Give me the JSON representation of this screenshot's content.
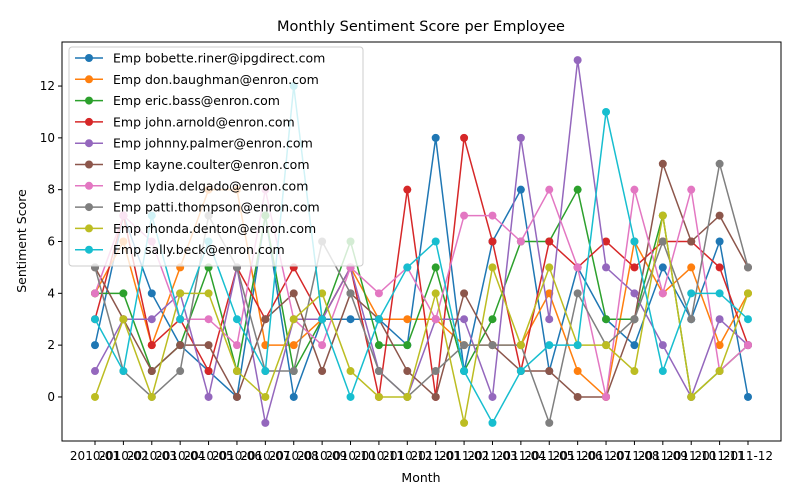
{
  "chart_data": {
    "type": "line",
    "title": "Monthly Sentiment Score per Employee",
    "xlabel": "Month",
    "ylabel": "Sentiment Score",
    "x": [
      "2010-01",
      "2010-02",
      "2010-03",
      "2010-04",
      "2010-05",
      "2010-06",
      "2010-07",
      "2010-08",
      "2010-09",
      "2010-10",
      "2010-11",
      "2010-12",
      "2011-01",
      "2011-02",
      "2011-03",
      "2011-04",
      "2011-05",
      "2011-06",
      "2011-07",
      "2011-08",
      "2011-09",
      "2011-10",
      "2011-11",
      "2011-12"
    ],
    "ylim": [
      -1.7,
      13.7
    ],
    "yticks": [
      0,
      2,
      4,
      6,
      8,
      10,
      12
    ],
    "grid": false,
    "legend_position": "upper-left",
    "series": [
      {
        "name": "Emp bobette.riner@ipgdirect.com",
        "color": "#1f77b4",
        "values": [
          2,
          7,
          4,
          2,
          1,
          0,
          7,
          0,
          3,
          3,
          3,
          2,
          10,
          1,
          6,
          8,
          1,
          5,
          3,
          2,
          5,
          3,
          6,
          0
        ]
      },
      {
        "name": "Emp don.baughman@enron.com",
        "color": "#ff7f0e",
        "values": [
          4,
          6,
          2,
          5,
          8,
          8,
          2,
          2,
          3,
          5,
          3,
          3,
          3,
          2,
          2,
          2,
          4,
          1,
          0,
          6,
          4,
          5,
          2,
          4
        ]
      },
      {
        "name": "Emp eric.bass@enron.com",
        "color": "#2ca02c",
        "values": [
          4,
          4,
          1,
          2,
          5,
          1,
          7,
          1,
          3,
          6,
          2,
          2,
          5,
          1,
          3,
          6,
          6,
          8,
          3,
          3,
          7,
          0,
          1,
          2
        ]
      },
      {
        "name": "Emp john.arnold@enron.com",
        "color": "#d62728",
        "values": [
          3,
          7,
          2,
          3,
          1,
          5,
          3,
          5,
          3,
          5,
          0,
          8,
          0,
          10,
          6,
          1,
          6,
          5,
          6,
          5,
          6,
          6,
          5,
          2
        ]
      },
      {
        "name": "Emp johnny.palmer@enron.com",
        "color": "#9467bd",
        "values": [
          1,
          3,
          3,
          4,
          0,
          5,
          -1,
          3,
          3,
          5,
          1,
          0,
          3,
          3,
          0,
          10,
          3,
          13,
          5,
          4,
          2,
          0,
          3,
          2
        ]
      },
      {
        "name": "Emp kayne.coulter@enron.com",
        "color": "#8c564b",
        "values": [
          5,
          3,
          1,
          2,
          2,
          0,
          3,
          4,
          1,
          4,
          3,
          1,
          0,
          4,
          2,
          1,
          1,
          0,
          0,
          3,
          9,
          6,
          7,
          5
        ]
      },
      {
        "name": "Emp lydia.delgado@enron.com",
        "color": "#e377c2",
        "values": [
          4,
          7,
          6,
          3,
          3,
          2,
          8,
          3,
          2,
          5,
          4,
          5,
          3,
          7,
          7,
          6,
          8,
          5,
          0,
          8,
          4,
          8,
          1,
          2
        ]
      },
      {
        "name": "Emp patti.thompson@enron.com",
        "color": "#7f7f7f",
        "values": [
          5,
          1,
          0,
          1,
          7,
          5,
          1,
          1,
          6,
          4,
          1,
          0,
          1,
          2,
          2,
          2,
          -1,
          4,
          2,
          3,
          6,
          3,
          9,
          5
        ]
      },
      {
        "name": "Emp rhonda.denton@enron.com",
        "color": "#bcbd22",
        "values": [
          0,
          3,
          0,
          4,
          4,
          1,
          0,
          3,
          4,
          1,
          0,
          0,
          4,
          -1,
          5,
          2,
          5,
          2,
          2,
          1,
          7,
          0,
          1,
          4
        ]
      },
      {
        "name": "Emp sally.beck@enron.com",
        "color": "#17becf",
        "values": [
          3,
          1,
          7,
          3,
          6,
          3,
          1,
          12,
          3,
          0,
          3,
          5,
          6,
          1,
          -1,
          1,
          2,
          2,
          11,
          6,
          1,
          4,
          4,
          3
        ]
      }
    ]
  }
}
